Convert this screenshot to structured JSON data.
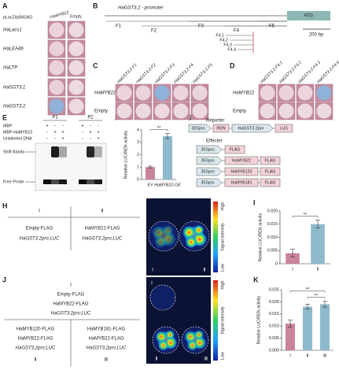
{
  "panel_a": {
    "label": "A",
    "header": "pLacZi/pB42AD",
    "columns": [
      "HaMYB22",
      "Empty"
    ],
    "rows": [
      {
        "name": "HaLacs1",
        "colors": [
          "#ecd3da",
          "#eddade"
        ]
      },
      {
        "name": "HaLEA46",
        "colors": [
          "#ead0d8",
          "#eed9df"
        ]
      },
      {
        "name": "HaLTP",
        "colors": [
          "#ebd2d9",
          "#eddbe0"
        ]
      },
      {
        "name": "HaGST3.1",
        "colors": [
          "#e9cfd7",
          "#eddade"
        ]
      },
      {
        "name": "HaGST3.2",
        "colors": [
          "#8fb2d8",
          "#eddade"
        ]
      }
    ]
  },
  "panel_b": {
    "label": "B",
    "title": "HaGST3.2 - promoter",
    "start_codon": "ATG",
    "fragments": [
      "F1",
      "F2",
      "F3",
      "F4",
      "F5"
    ],
    "subfragments": [
      "F4.1",
      "F4.2",
      "F4.3",
      "F4.4"
    ],
    "scale": "200 bp"
  },
  "panel_c": {
    "label": "C",
    "columns": [
      "HaGST3.2-F1",
      "HaGST3.2-F2",
      "HaGST3.2-F3",
      "HaGST3.2-F4",
      "HaGST3.2-F5"
    ],
    "rows": [
      {
        "name": "HaMYB22",
        "colors": [
          "#ecd4db",
          "#ebd3da",
          "#8fb2d8",
          "#ecd4db",
          "#ebd5dc"
        ]
      },
      {
        "name": "Empty",
        "colors": [
          "#eddade",
          "#eddade",
          "#ecd8dd",
          "#eddade",
          "#eddade"
        ]
      }
    ]
  },
  "panel_d": {
    "label": "D",
    "columns": [
      "HaGST3.2-F4.1",
      "HaGST3.2-F4.2",
      "HaGST3.2-F4.3",
      "HaGST3.2-F4.4"
    ],
    "rows": [
      {
        "name": "HaMYB22",
        "colors": [
          "#ecd4db",
          "#ebd3da",
          "#ecd4db",
          "#8fb2d8"
        ]
      },
      {
        "name": "Empty",
        "colors": [
          "#eddade",
          "#eddade",
          "#eddade",
          "#eddade"
        ]
      }
    ]
  },
  "panel_e": {
    "label": "E",
    "probes": [
      "P1",
      "P2"
    ],
    "rows": [
      {
        "name": "MBP",
        "signs": [
          "+",
          "-",
          "-",
          "+",
          "-",
          "-"
        ]
      },
      {
        "name": "MBP-HaMYB22",
        "signs": [
          "-",
          "+",
          "+",
          "-",
          "+",
          "+"
        ]
      },
      {
        "name": "Unlabeled DNA",
        "signs": [
          "-",
          "-",
          "+",
          "-",
          "-",
          "+"
        ]
      }
    ],
    "bands": [
      "Shift Bands",
      "Free Probe"
    ]
  },
  "panel_f": {
    "label": "F",
    "type": "bar",
    "y_label": "Relative LUC/REN activity",
    "categories": [
      "EV",
      "HaMYB22-OE"
    ],
    "values": [
      1.0,
      3.5
    ],
    "errors": [
      0.08,
      0.2
    ],
    "colors": [
      "#c9849c",
      "#8fb9cc"
    ],
    "ylim": [
      0,
      4
    ],
    "yticks": [
      0,
      1,
      2,
      3,
      4
    ],
    "significance": [
      "**"
    ]
  },
  "panel_g": {
    "label": "G",
    "reporter": {
      "title": "Reporter",
      "parts": [
        "35Spro",
        "REN",
        "HaGST3.2pro",
        "LUC"
      ]
    },
    "effector": {
      "title": "Effecter",
      "constructs": [
        [
          "35Spro",
          "FLAG"
        ],
        [
          "35Spro",
          "HaMYB22",
          "FLAG"
        ],
        [
          "35Spro",
          "HaMYB120",
          "FLAG"
        ],
        [
          "35Spro",
          "HaMYB181",
          "FLAG"
        ]
      ]
    }
  },
  "panel_h": {
    "label": "H",
    "groups": [
      {
        "id": "Ⅰ",
        "lines": [
          "Empty-FLAG",
          "HaGST3.2pro:LUC"
        ]
      },
      {
        "id": "Ⅱ",
        "lines": [
          "HaMYB22-FLAG",
          "HaGST3.2pro:LUC"
        ]
      }
    ],
    "image": {
      "regions": [
        "Ⅰ",
        "Ⅱ"
      ],
      "scale": [
        "High",
        "Low"
      ],
      "scale_label": "Signal intensity"
    }
  },
  "panel_i": {
    "label": "I",
    "type": "bar",
    "y_label": "Relative LUC/REN activity",
    "categories": [
      "Ⅰ",
      "Ⅱ"
    ],
    "values": [
      0.004,
      0.015
    ],
    "errors": [
      0.0015,
      0.0015
    ],
    "colors": [
      "#c9849c",
      "#8fb9cc"
    ],
    "ylim": [
      0,
      0.02
    ],
    "yticks": [
      0,
      0.005,
      {
        "value": 0.01,
        "label": "0.010"
      },
      0.015,
      {
        "value": 0.02,
        "label": "0.020"
      }
    ],
    "significance": [
      "**"
    ]
  },
  "panel_j": {
    "label": "J",
    "groups": [
      {
        "id": "Ⅰ",
        "lines": [
          "Empty-FLAG",
          "HaMYB22-FLAG",
          "HaGST3.2pro:LUC"
        ]
      },
      {
        "id": "Ⅱ",
        "lines": [
          "HaMYB120-FLAG",
          "HaMYB22-FLAG",
          "HaGST3.2pro:LUC"
        ]
      },
      {
        "id": "Ⅲ",
        "lines": [
          "HaMYB181-FLAG",
          "HaMYB22-FLAG",
          "HaGST3.2pro:LUC"
        ]
      }
    ],
    "image": {
      "regions": [
        "Ⅰ",
        "Ⅱ",
        "Ⅲ"
      ],
      "scale": [
        "High",
        "Low"
      ],
      "scale_label": "Signal intensity"
    }
  },
  "panel_k": {
    "label": "K",
    "type": "bar",
    "y_label": "Relative LUC/REN activity",
    "categories": [
      "Ⅰ",
      "Ⅱ",
      "Ⅲ"
    ],
    "values": [
      0.011,
      0.018,
      0.019
    ],
    "errors": [
      0.0015,
      0.001,
      0.0012
    ],
    "colors": [
      "#c9849c",
      "#8fb9cc",
      "#8fb9cc"
    ],
    "ylim": [
      0,
      0.025
    ],
    "yticks": [
      {
        "value": 0,
        "label": "0.000"
      },
      0.005,
      {
        "value": 0.01,
        "label": "0.010"
      },
      0.015,
      {
        "value": 0.02,
        "label": "0.020"
      },
      0.025
    ],
    "significance": [
      "**",
      "**"
    ]
  }
}
